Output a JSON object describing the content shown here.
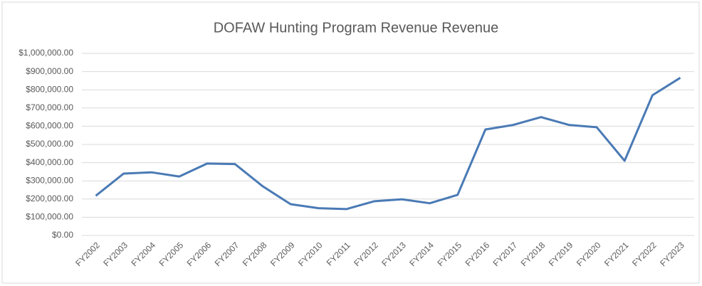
{
  "chart_data": {
    "type": "line",
    "title": "DOFAW Hunting Program Revenue Revenue",
    "categories": [
      "FY2002",
      "FY2003",
      "FY2004",
      "FY2005",
      "FY2006",
      "FY2007",
      "FY2008",
      "FY2009",
      "FY2010",
      "FY2011",
      "FY2012",
      "FY2013",
      "FY2014",
      "FY2015",
      "FY2016",
      "FY2017",
      "FY2018",
      "FY2019",
      "FY2020",
      "FY2021",
      "FY2022",
      "FY2023"
    ],
    "values": [
      218000,
      340000,
      347000,
      324000,
      395000,
      392000,
      270000,
      172000,
      150000,
      145000,
      188000,
      199000,
      177000,
      223000,
      582000,
      607000,
      650000,
      607000,
      594000,
      410000,
      770000,
      866000
    ],
    "color": "#4a7ab5",
    "ylim": [
      0,
      1000000
    ],
    "yticks": [
      {
        "value": 0,
        "label": "$0.00"
      },
      {
        "value": 100000,
        "label": "$100,000.00"
      },
      {
        "value": 200000,
        "label": "$200,000.00"
      },
      {
        "value": 300000,
        "label": "$300,000.00"
      },
      {
        "value": 400000,
        "label": "$400,000.00"
      },
      {
        "value": 500000,
        "label": "$500,000.00"
      },
      {
        "value": 600000,
        "label": "$600,000.00"
      },
      {
        "value": 700000,
        "label": "$700,000.00"
      },
      {
        "value": 800000,
        "label": "$800,000.00"
      },
      {
        "value": 900000,
        "label": "$900,000.00"
      },
      {
        "value": 1000000,
        "label": "$1,000,000.00"
      }
    ],
    "grid": true
  }
}
